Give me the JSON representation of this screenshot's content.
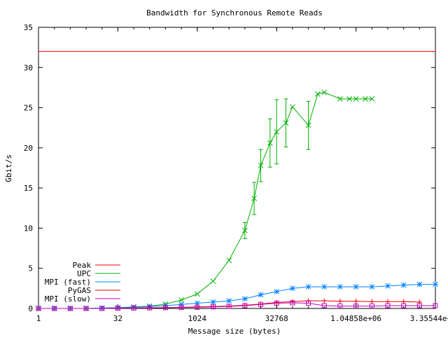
{
  "chart_data": {
    "type": "line",
    "title": "Bandwidth for Synchronous Remote Reads",
    "xlabel": "Message size (bytes)",
    "ylabel": "Gbit/s",
    "x_scale": "log2",
    "xlim": [
      1,
      33554432
    ],
    "ylim": [
      0,
      35
    ],
    "x_ticks": [
      {
        "value": 1,
        "label": "1"
      },
      {
        "value": 32,
        "label": "32"
      },
      {
        "value": 1024,
        "label": "1024"
      },
      {
        "value": 32768,
        "label": "32768"
      },
      {
        "value": 1048576,
        "label": "1.04858e+06"
      },
      {
        "value": 33554432,
        "label": "3.35544e+07"
      }
    ],
    "y_ticks": [
      0,
      5,
      10,
      15,
      20,
      25,
      30,
      35
    ],
    "grid": false,
    "legend_position": "bottom-left",
    "series": [
      {
        "name": "Peak",
        "color": "#ff0000",
        "style": "hline",
        "marker": "none",
        "y": 32
      },
      {
        "name": "UPC",
        "color": "#00b000",
        "style": "linespoints",
        "marker": "x",
        "x": [
          1,
          2,
          4,
          8,
          16,
          32,
          64,
          128,
          256,
          512,
          1024,
          2048,
          4096,
          8192,
          12288,
          16384,
          24576,
          32768,
          49152,
          65536,
          131072,
          196608,
          262144,
          524288,
          786432,
          1048576,
          1572864,
          2097152
        ],
        "y": [
          0,
          0,
          0,
          0,
          0.05,
          0.1,
          0.2,
          0.3,
          0.55,
          1.05,
          1.8,
          3.4,
          6.0,
          9.7,
          13.7,
          17.8,
          20.6,
          22.0,
          23.1,
          25.1,
          22.8,
          26.7,
          26.9,
          26.1,
          26.1,
          26.1,
          26.1,
          26.1
        ],
        "y_err": [
          0,
          0,
          0,
          0,
          0,
          0,
          0,
          0,
          0,
          0,
          0,
          0,
          0,
          1.0,
          2.0,
          2.0,
          3.0,
          4.0,
          3.0,
          0,
          3.0,
          0,
          0,
          0,
          0,
          0,
          0,
          0
        ]
      },
      {
        "name": "MPI (fast)",
        "color": "#0080ff",
        "style": "linespoints",
        "marker": "asterisk",
        "x": [
          1,
          2,
          4,
          8,
          16,
          32,
          64,
          128,
          256,
          512,
          1024,
          2048,
          4096,
          8192,
          16384,
          32768,
          65536,
          131072,
          262144,
          524288,
          1048576,
          2097152,
          4194304,
          8388608,
          16777216,
          33554432
        ],
        "y": [
          0,
          0,
          0,
          0,
          0.05,
          0.1,
          0.15,
          0.25,
          0.35,
          0.5,
          0.65,
          0.8,
          0.95,
          1.2,
          1.7,
          2.1,
          2.5,
          2.7,
          2.7,
          2.7,
          2.7,
          2.7,
          2.8,
          2.9,
          3.0,
          3.0
        ]
      },
      {
        "name": "PyGAS",
        "color": "#e00000",
        "style": "linespoints",
        "marker": "plus",
        "x": [
          1,
          2,
          4,
          8,
          16,
          32,
          64,
          128,
          256,
          512,
          1024,
          2048,
          4096,
          8192,
          16384,
          32768,
          65536,
          131072,
          262144,
          524288,
          1048576,
          2097152,
          4194304,
          8388608,
          16777216
        ],
        "y": [
          0,
          0,
          0,
          0,
          0,
          0.05,
          0.05,
          0.1,
          0.1,
          0.15,
          0.2,
          0.25,
          0.3,
          0.4,
          0.55,
          0.75,
          0.85,
          0.95,
          0.95,
          0.9,
          0.9,
          0.85,
          0.85,
          0.85,
          0.8
        ]
      },
      {
        "name": "MPI (slow)",
        "color": "#c000c0",
        "style": "linespoints",
        "marker": "square",
        "x": [
          1,
          2,
          4,
          8,
          16,
          32,
          64,
          128,
          256,
          512,
          1024,
          2048,
          4096,
          8192,
          16384,
          32768,
          65536,
          131072,
          262144,
          524288,
          1048576,
          2097152,
          4194304,
          8388608,
          16777216,
          33554432
        ],
        "y": [
          0,
          0,
          0,
          0,
          0,
          0.03,
          0.05,
          0.07,
          0.1,
          0.12,
          0.15,
          0.2,
          0.25,
          0.35,
          0.5,
          0.65,
          0.7,
          0.65,
          0.35,
          0.3,
          0.3,
          0.3,
          0.35,
          0.35,
          0.35,
          0.35
        ]
      }
    ]
  }
}
